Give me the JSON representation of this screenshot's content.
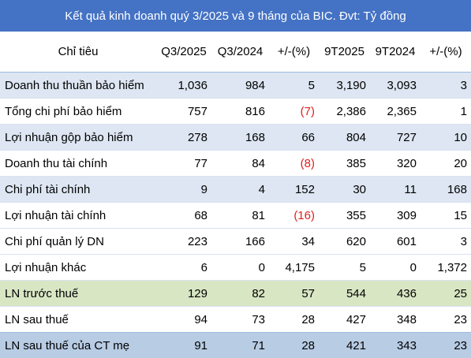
{
  "title": "Kết quả kinh doanh quý 3/2025 và 9 tháng của BIC. Đvt: Tỷ đồng",
  "headers": [
    "Chỉ tiêu",
    "Q3/2025",
    "Q3/2024",
    "+/-(%)",
    "9T2025",
    "9T2024",
    "+/-(%)"
  ],
  "colors": {
    "header": "#4472c4",
    "blue_row": "#dde6f2",
    "green_row": "#d9e6c4",
    "last_row": "#b8cce4",
    "negative": "#e02020"
  },
  "rows": [
    {
      "label": "Doanh thu thuần bảo hiểm",
      "q3_2025": "1,036",
      "q3_2024": "984",
      "q3_change": "5",
      "t9_2025": "3,190",
      "t9_2024": "3,093",
      "t9_change": "3",
      "style": "blue"
    },
    {
      "label": "Tổng chi phí bảo hiểm",
      "q3_2025": "757",
      "q3_2024": "816",
      "q3_change": "(7)",
      "t9_2025": "2,386",
      "t9_2024": "2,365",
      "t9_change": "1",
      "style": "plain"
    },
    {
      "label": "Lợi nhuận gộp  bảo hiểm",
      "q3_2025": "278",
      "q3_2024": "168",
      "q3_change": "66",
      "t9_2025": "804",
      "t9_2024": "727",
      "t9_change": "10",
      "style": "blue"
    },
    {
      "label": "Doanh thu tài chính",
      "q3_2025": "77",
      "q3_2024": "84",
      "q3_change": "(8)",
      "t9_2025": "385",
      "t9_2024": "320",
      "t9_change": "20",
      "style": "plain"
    },
    {
      "label": "Chi phí tài chính",
      "q3_2025": "9",
      "q3_2024": "4",
      "q3_change": "152",
      "t9_2025": "30",
      "t9_2024": "11",
      "t9_change": "168",
      "style": "blue"
    },
    {
      "label": "Lợi nhuận tài chính",
      "q3_2025": "68",
      "q3_2024": "81",
      "q3_change": "(16)",
      "t9_2025": "355",
      "t9_2024": "309",
      "t9_change": "15",
      "style": "plain"
    },
    {
      "label": "Chi phí quản lý DN",
      "q3_2025": "223",
      "q3_2024": "166",
      "q3_change": "34",
      "t9_2025": "620",
      "t9_2024": "601",
      "t9_change": "3",
      "style": "plain"
    },
    {
      "label": "Lợi nhuận khác",
      "q3_2025": "6",
      "q3_2024": "0",
      "q3_change": "4,175",
      "t9_2025": "5",
      "t9_2024": "0",
      "t9_change": "1,372",
      "style": "plain"
    },
    {
      "label": "LN trước thuế",
      "q3_2025": "129",
      "q3_2024": "82",
      "q3_change": "57",
      "t9_2025": "544",
      "t9_2024": "436",
      "t9_change": "25",
      "style": "green"
    },
    {
      "label": "LN sau thuế",
      "q3_2025": "94",
      "q3_2024": "73",
      "q3_change": "28",
      "t9_2025": "427",
      "t9_2024": "348",
      "t9_change": "23",
      "style": "plain"
    },
    {
      "label": "LN sau thuế của CT mẹ",
      "q3_2025": "91",
      "q3_2024": "71",
      "q3_change": "28",
      "t9_2025": "421",
      "t9_2024": "343",
      "t9_change": "23",
      "style": "last"
    }
  ]
}
